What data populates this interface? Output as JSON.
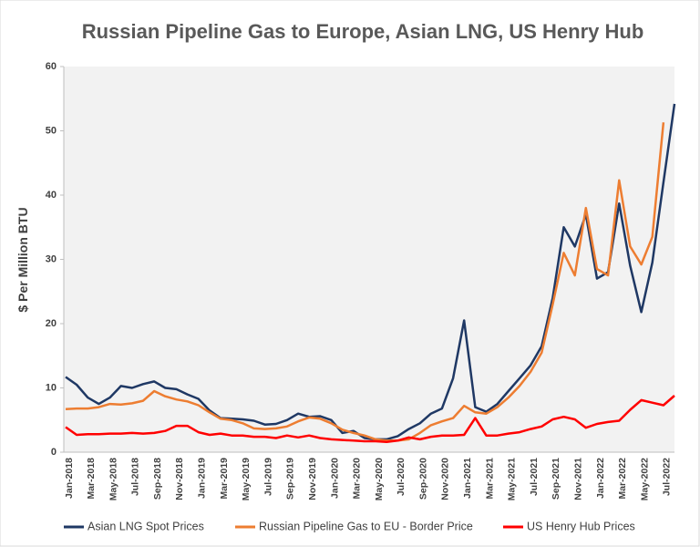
{
  "chart_data": {
    "type": "line",
    "title": "Russian Pipeline Gas to Europe, Asian LNG, US Henry Hub",
    "y_label": "$ Per Million BTU",
    "categories": [
      "Jan-2018",
      null,
      "Mar-2018",
      null,
      "May-2018",
      null,
      "Jul-2018",
      null,
      "Sep-2018",
      null,
      "Nov-2018",
      null,
      "Jan-2019",
      null,
      "Mar-2019",
      null,
      "May-2019",
      null,
      "Jul-2019",
      null,
      "Sep-2019",
      null,
      "Nov-2019",
      null,
      "Jan-2020",
      null,
      "Mar-2020",
      null,
      "May-2020",
      null,
      "Jul-2020",
      null,
      "Sep-2020",
      null,
      "Nov-2020",
      null,
      "Jan-2021",
      null,
      "Mar-2021",
      null,
      "May-2021",
      null,
      "Jul-2021",
      null,
      "Sep-2021",
      null,
      "Nov-2021",
      null,
      "Jan-2022",
      null,
      "Mar-2022",
      null,
      "May-2022",
      null,
      "Jul-2022",
      null
    ],
    "series": [
      {
        "name": "Asian LNG Spot Prices",
        "color": "#1f3864",
        "values": [
          11.7,
          10.5,
          8.5,
          7.5,
          8.5,
          10.3,
          10.0,
          10.6,
          11.0,
          10.0,
          9.8,
          9.0,
          8.3,
          6.5,
          5.3,
          5.2,
          5.1,
          4.9,
          4.3,
          4.4,
          5.0,
          6.0,
          5.5,
          5.6,
          5.0,
          3.0,
          3.3,
          2.2,
          2.0,
          2.0,
          2.5,
          3.6,
          4.5,
          6.0,
          6.8,
          11.5,
          20.5,
          7.0,
          6.3,
          7.5,
          9.5,
          11.5,
          13.5,
          16.5,
          24,
          35,
          32,
          37,
          27,
          28,
          38.7,
          29,
          21.8,
          29.5,
          42,
          54.2
        ]
      },
      {
        "name": "Russian Pipeline Gas to EU - Border Price",
        "color": "#ed7d31",
        "values": [
          6.7,
          6.8,
          6.8,
          7.0,
          7.5,
          7.4,
          7.6,
          8.0,
          9.5,
          8.7,
          8.2,
          7.9,
          7.3,
          6.2,
          5.2,
          5.0,
          4.5,
          3.7,
          3.6,
          3.7,
          4.0,
          4.8,
          5.4,
          5.2,
          4.5,
          3.5,
          3.0,
          2.6,
          2.0,
          1.8,
          1.8,
          2.0,
          3.0,
          4.2,
          4.8,
          5.3,
          7.2,
          6.2,
          6.0,
          7.0,
          8.5,
          10.3,
          12.5,
          15.5,
          23,
          31,
          27.5,
          38,
          28.5,
          27.5,
          42.3,
          32,
          29.2,
          33.5,
          51.3,
          null
        ]
      },
      {
        "name": "US Henry Hub Prices",
        "color": "#ff0000",
        "values": [
          3.9,
          2.7,
          2.8,
          2.8,
          2.9,
          2.9,
          3.0,
          2.9,
          3.0,
          3.3,
          4.1,
          4.1,
          3.1,
          2.7,
          2.9,
          2.6,
          2.6,
          2.4,
          2.4,
          2.2,
          2.6,
          2.3,
          2.6,
          2.2,
          2.0,
          1.9,
          1.8,
          1.7,
          1.7,
          1.6,
          1.8,
          2.3,
          2.0,
          2.4,
          2.6,
          2.6,
          2.7,
          5.3,
          2.6,
          2.6,
          2.9,
          3.1,
          3.6,
          4.0,
          5.1,
          5.5,
          5.1,
          3.8,
          4.4,
          4.7,
          4.9,
          6.6,
          8.1,
          7.7,
          7.3,
          8.8
        ]
      }
    ],
    "ylim": [
      0,
      60
    ],
    "yticks": [
      0,
      10,
      20,
      30,
      40,
      50,
      60
    ],
    "grid": false,
    "legend": "bottom"
  }
}
